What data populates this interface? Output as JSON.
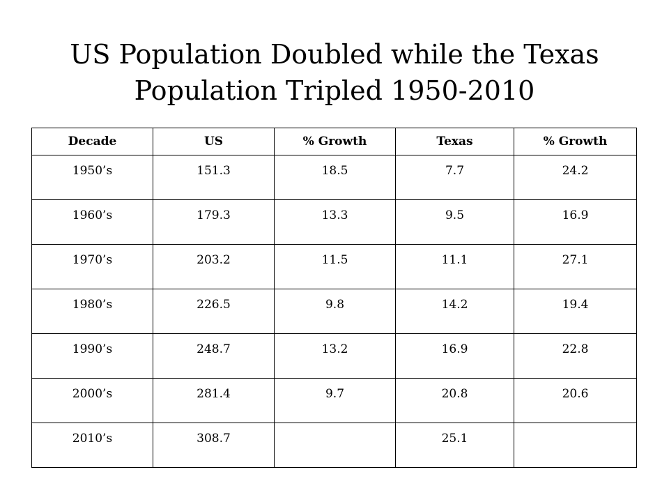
{
  "title": {
    "line1": "US Population Doubled while the Texas",
    "line2": "Population Tripled 1950-2010"
  },
  "table": {
    "headers": [
      "Decade",
      "US",
      "% Growth",
      "Texas",
      "% Growth"
    ],
    "rows": [
      [
        "1950’s",
        "151.3",
        "18.5",
        "7.7",
        "24.2"
      ],
      [
        "1960’s",
        "179.3",
        "13.3",
        "9.5",
        "16.9"
      ],
      [
        "1970’s",
        "203.2",
        "11.5",
        "11.1",
        "27.1"
      ],
      [
        "1980’s",
        "226.5",
        "9.8",
        "14.2",
        "19.4"
      ],
      [
        "1990’s",
        "248.7",
        "13.2",
        "16.9",
        "22.8"
      ],
      [
        "2000’s",
        "281.4",
        "9.7",
        "20.8",
        "20.6"
      ],
      [
        "2010’s",
        "308.7",
        "",
        "25.1",
        ""
      ]
    ]
  }
}
